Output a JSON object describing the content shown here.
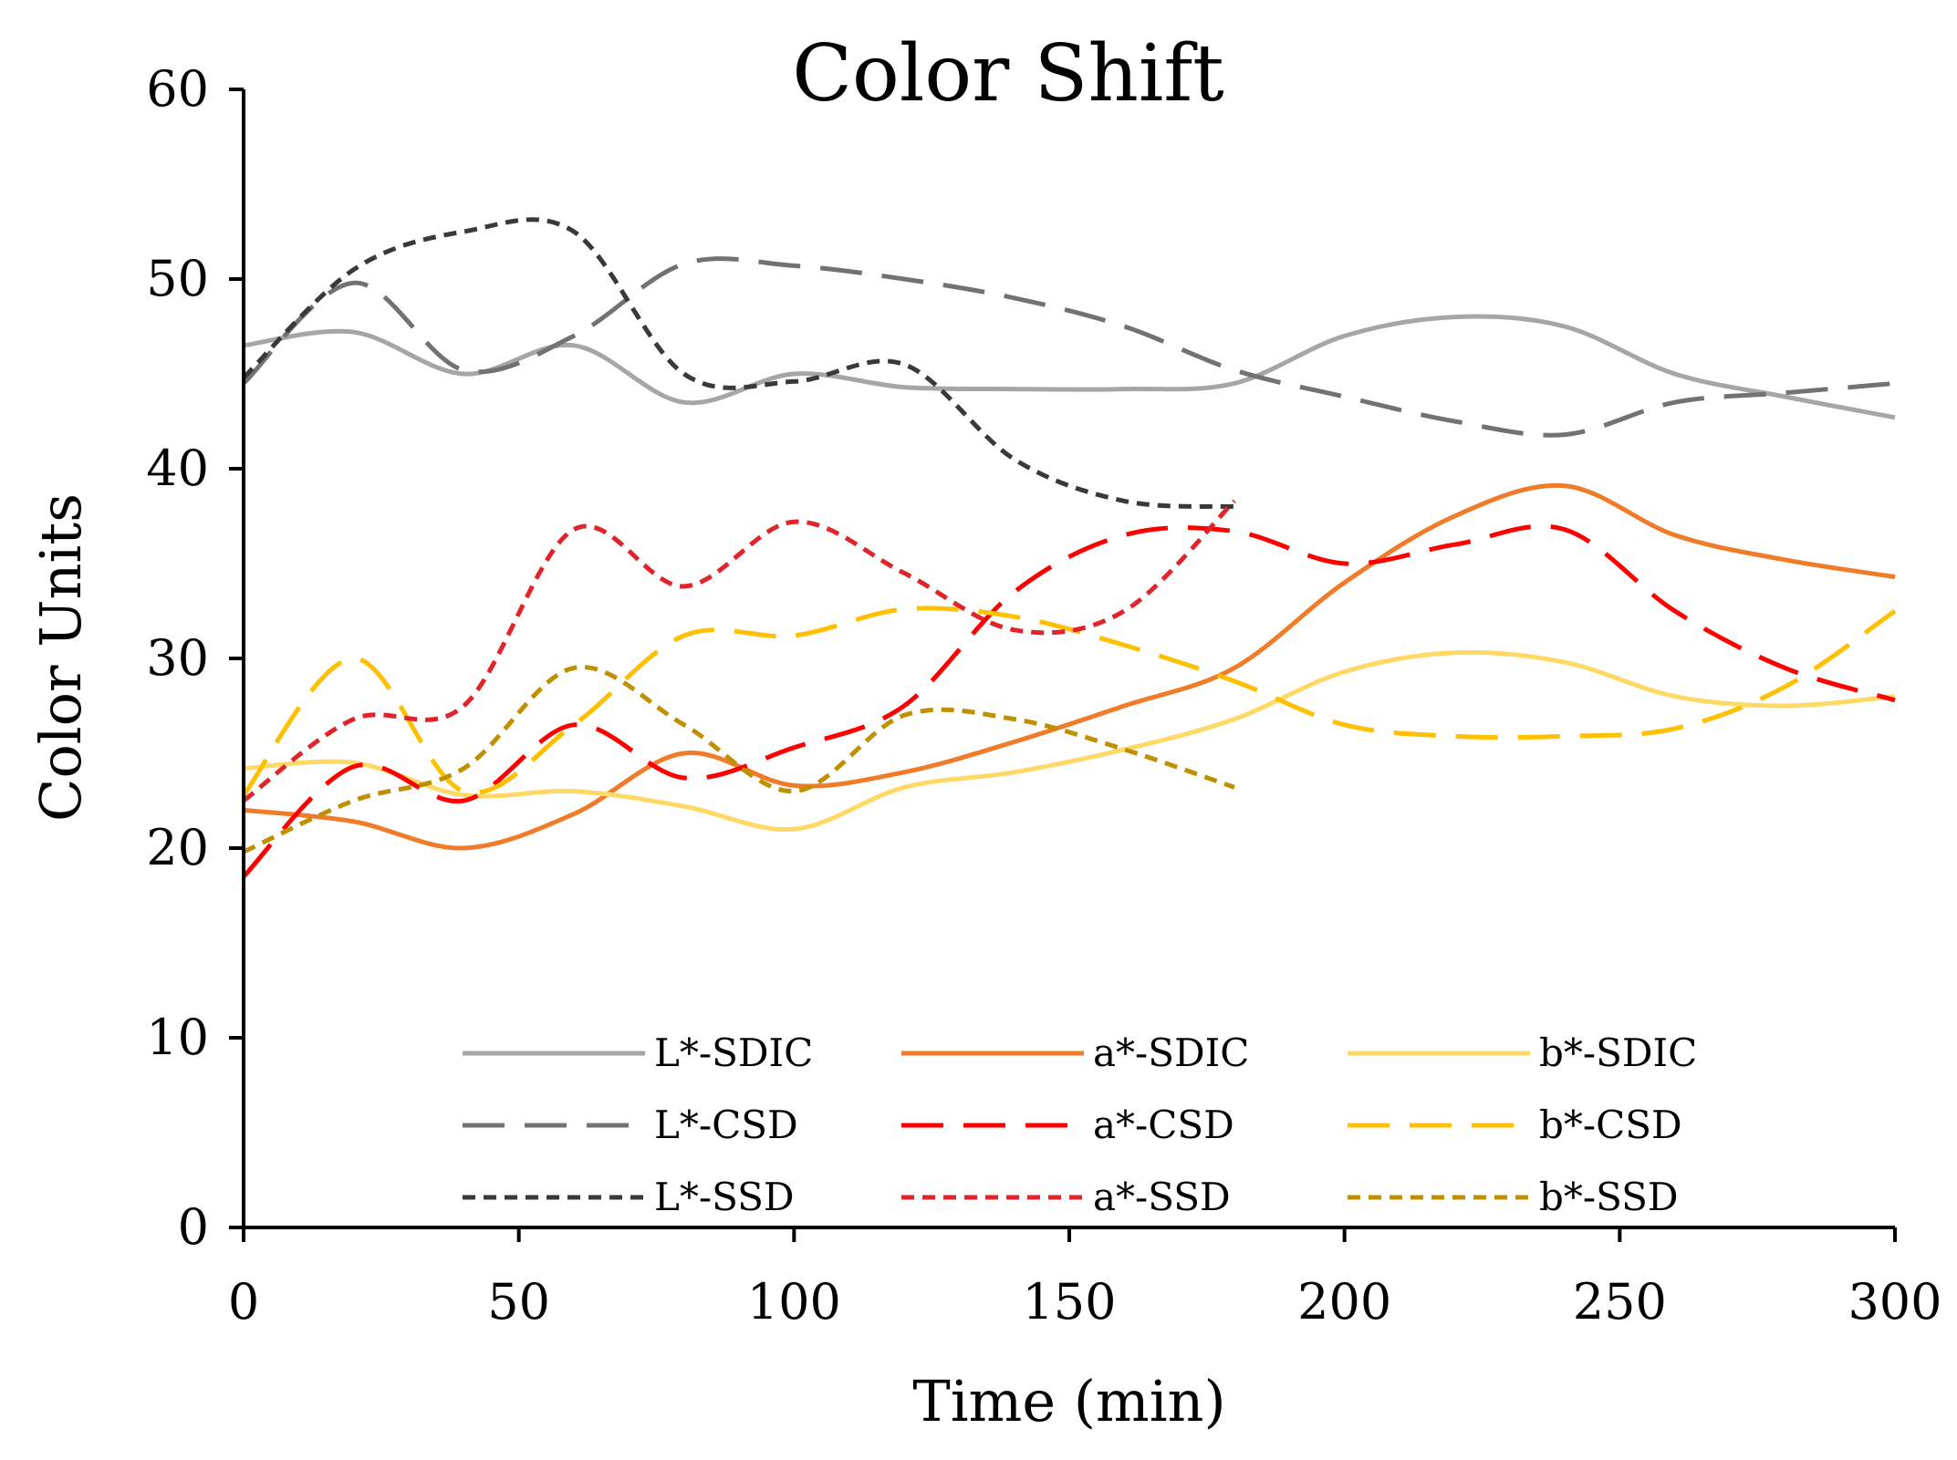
{
  "chart_data": {
    "type": "line",
    "title": "Color Shift",
    "xlabel": "Time (min)",
    "ylabel": "Color Units",
    "xlim": [
      0,
      300
    ],
    "ylim": [
      0,
      60
    ],
    "xticks": [
      0,
      50,
      100,
      150,
      200,
      250,
      300
    ],
    "yticks": [
      0,
      10,
      20,
      30,
      40,
      50,
      60
    ],
    "grid": false,
    "legend_position": "bottom-center",
    "series": [
      {
        "name": "L*-SDIC",
        "color": "#a6a6a6",
        "style": "solid",
        "x": [
          0,
          20,
          40,
          60,
          80,
          100,
          120,
          140,
          160,
          180,
          200,
          220,
          240,
          260,
          280,
          300
        ],
        "y": [
          46.5,
          47.2,
          45.0,
          46.5,
          43.5,
          45.0,
          44.3,
          44.2,
          44.2,
          44.5,
          47.0,
          48.0,
          47.5,
          45.0,
          43.8,
          42.7
        ]
      },
      {
        "name": "a*-SDIC",
        "color": "#f07c2a",
        "style": "solid",
        "x": [
          0,
          20,
          40,
          60,
          80,
          100,
          120,
          140,
          160,
          180,
          200,
          220,
          240,
          260,
          280,
          300
        ],
        "y": [
          22.0,
          21.4,
          20.0,
          21.8,
          25.0,
          23.3,
          24.0,
          25.6,
          27.5,
          29.5,
          34.0,
          37.5,
          39.1,
          36.5,
          35.2,
          34.3
        ]
      },
      {
        "name": "b*-SDIC",
        "color": "#ffd966",
        "style": "solid",
        "x": [
          0,
          20,
          40,
          60,
          80,
          100,
          120,
          140,
          160,
          180,
          200,
          220,
          240,
          260,
          280,
          300
        ],
        "y": [
          24.2,
          24.5,
          22.8,
          23.0,
          22.2,
          21.0,
          23.2,
          24.0,
          25.2,
          26.8,
          29.3,
          30.3,
          29.8,
          28.0,
          27.5,
          28.0
        ]
      },
      {
        "name": "L*-CSD",
        "color": "#767171",
        "style": "dashed",
        "x": [
          0,
          20,
          40,
          60,
          80,
          100,
          120,
          140,
          160,
          180,
          200,
          220,
          240,
          260,
          280,
          300
        ],
        "y": [
          44.5,
          49.8,
          45.2,
          47.0,
          50.8,
          50.7,
          50.0,
          49.0,
          47.5,
          45.2,
          43.8,
          42.5,
          41.8,
          43.5,
          44.0,
          44.5
        ]
      },
      {
        "name": "a*-CSD",
        "color": "#ff0000",
        "style": "dashed",
        "x": [
          0,
          20,
          40,
          60,
          80,
          100,
          120,
          140,
          160,
          180,
          200,
          220,
          240,
          260,
          280,
          300
        ],
        "y": [
          18.5,
          24.3,
          22.5,
          26.5,
          23.7,
          25.3,
          27.5,
          33.5,
          36.5,
          36.7,
          35.0,
          36.0,
          36.8,
          32.5,
          29.5,
          27.8
        ]
      },
      {
        "name": "b*-CSD",
        "color": "#ffc000",
        "style": "dashed",
        "x": [
          0,
          20,
          40,
          60,
          80,
          100,
          120,
          140,
          160,
          180,
          200,
          220,
          240,
          260,
          280,
          300
        ],
        "y": [
          22.8,
          30.0,
          23.0,
          26.5,
          31.2,
          31.2,
          32.6,
          32.2,
          30.7,
          28.8,
          26.5,
          25.9,
          25.9,
          26.3,
          28.5,
          32.5
        ]
      },
      {
        "name": "L*-SSD",
        "color": "#3a3838",
        "style": "dotted",
        "x": [
          0,
          20,
          40,
          60,
          80,
          100,
          120,
          140,
          160,
          180
        ],
        "y": [
          44.8,
          50.5,
          52.5,
          52.5,
          45.0,
          44.6,
          45.5,
          40.5,
          38.3,
          38.0
        ]
      },
      {
        "name": "a*-SSD",
        "color": "#e0242a",
        "style": "dotted",
        "x": [
          0,
          20,
          40,
          60,
          80,
          100,
          120,
          140,
          160,
          180
        ],
        "y": [
          22.5,
          26.8,
          27.5,
          36.8,
          33.8,
          37.2,
          34.5,
          31.5,
          32.5,
          38.3
        ]
      },
      {
        "name": "b*-SSD",
        "color": "#bf9000",
        "style": "dotted",
        "x": [
          0,
          20,
          40,
          60,
          80,
          100,
          120,
          140,
          160,
          180
        ],
        "y": [
          19.8,
          22.5,
          24.2,
          29.5,
          26.5,
          23.0,
          27.0,
          26.8,
          25.2,
          23.2
        ]
      }
    ]
  }
}
